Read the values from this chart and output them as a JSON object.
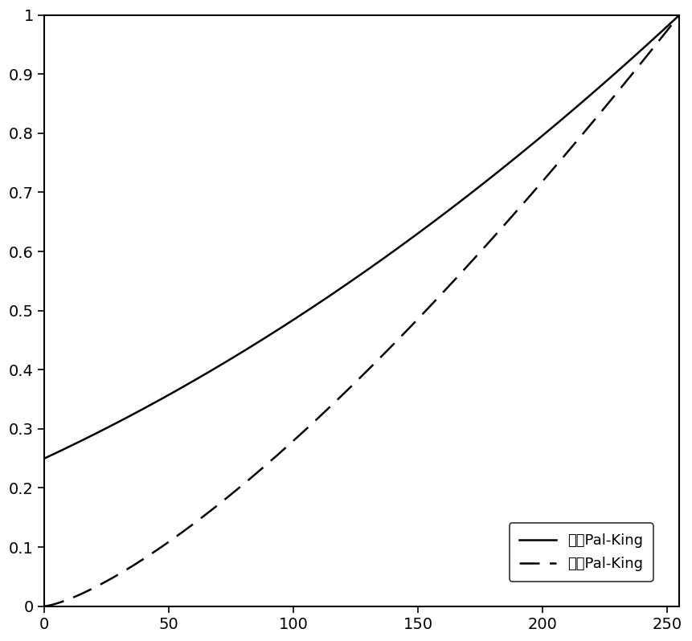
{
  "xlim": [
    0,
    255
  ],
  "ylim": [
    0,
    1
  ],
  "xticks": [
    0,
    50,
    100,
    150,
    200,
    250
  ],
  "yticks": [
    0,
    0.1,
    0.2,
    0.3,
    0.4,
    0.5,
    0.6,
    0.7,
    0.8,
    0.9,
    1.0
  ],
  "classic_label": "经典Pal-King",
  "improved_label": "改进Pal-King",
  "classic_color": "#000000",
  "improved_color": "#000000",
  "classic_linestyle": "solid",
  "improved_linestyle": "dashed",
  "linewidth": 1.8,
  "background_color": "#ffffff",
  "classic_c": 85.0,
  "classic_gamma": 2.0,
  "improved_gamma": 1.65,
  "dashes_on": 10,
  "dashes_off": 5
}
